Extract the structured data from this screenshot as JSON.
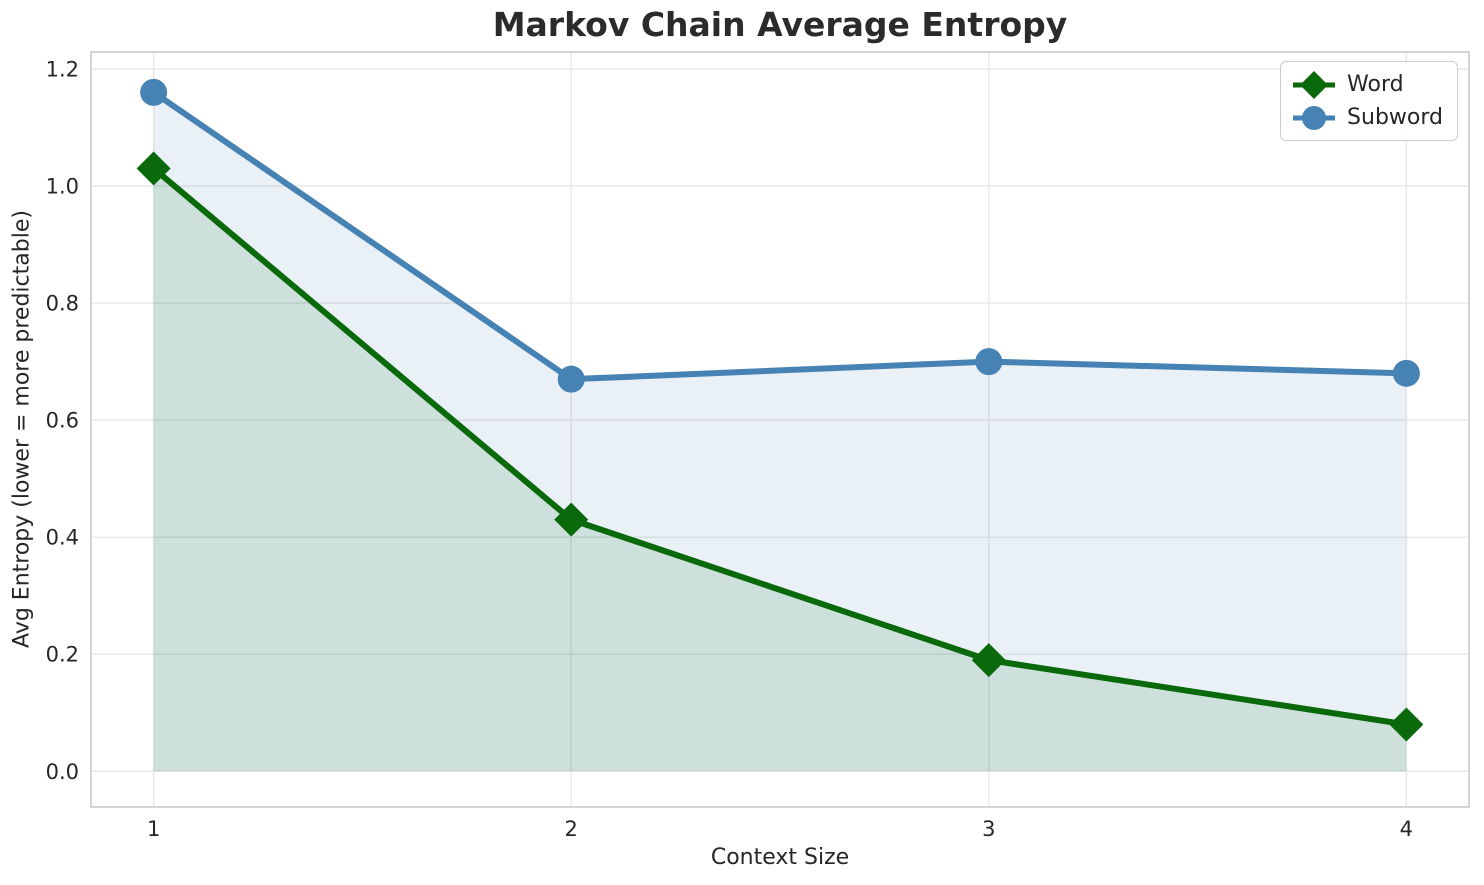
{
  "chart_data": {
    "type": "line",
    "title": "Markov Chain Average Entropy",
    "xlabel": "Context Size",
    "ylabel": "Avg Entropy (lower = more predictable)",
    "x": [
      1,
      2,
      3,
      4
    ],
    "series": [
      {
        "name": "Word",
        "values": [
          1.03,
          0.43,
          0.19,
          0.08
        ],
        "color": "#0a690a",
        "marker": "diamond",
        "fill_to_zero": true
      },
      {
        "name": "Subword",
        "values": [
          1.16,
          0.67,
          0.7,
          0.68
        ],
        "color": "#4682b4",
        "marker": "circle",
        "fill_to_zero": true
      }
    ],
    "xticks": [
      "1",
      "2",
      "3",
      "4"
    ],
    "yticks": [
      "0.0",
      "0.2",
      "0.4",
      "0.6",
      "0.8",
      "1.0",
      "1.2"
    ],
    "xlim": [
      0.85,
      4.15
    ],
    "ylim": [
      -0.061,
      1.229
    ],
    "grid": true,
    "legend_position": "upper right",
    "fill_opacity": 0.12
  },
  "legend": {
    "items": [
      {
        "label": "Word"
      },
      {
        "label": "Subword"
      }
    ]
  },
  "colors": {
    "grid": "#e9e9e9",
    "spine": "#c9c9c9",
    "tick_text": "#262626",
    "title_text": "#2b2b2b"
  }
}
